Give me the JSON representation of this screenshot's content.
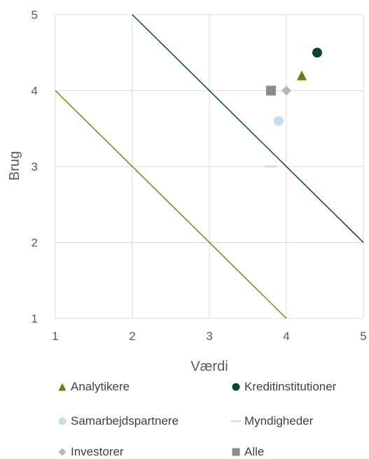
{
  "chart_data": {
    "type": "scatter",
    "title": "",
    "xlabel": "Værdi",
    "ylabel": "Brug",
    "xlim": [
      1,
      5
    ],
    "ylim": [
      1,
      5
    ],
    "xticks": [
      "1",
      "2",
      "3",
      "4",
      "5"
    ],
    "yticks": [
      "1",
      "2",
      "3",
      "4",
      "5"
    ],
    "grid": true,
    "legend_position": "bottom",
    "series": [
      {
        "name": "Analytikere",
        "marker": "triangle",
        "color": "#6b7d12",
        "points": [
          [
            4.2,
            4.2
          ]
        ]
      },
      {
        "name": "Kreditinstitutioner",
        "marker": "circle",
        "color": "#0b4632",
        "points": [
          [
            4.4,
            4.5
          ]
        ]
      },
      {
        "name": "Samarbejdspartnere",
        "marker": "circle",
        "color": "#c5dde9",
        "points": [
          [
            3.9,
            3.6
          ]
        ]
      },
      {
        "name": "Myndigheder",
        "marker": "dash",
        "color": "#dcdccb",
        "points": [
          [
            3.8,
            3.0
          ]
        ]
      },
      {
        "name": "Investorer",
        "marker": "diamond",
        "color": "#b3b8b3",
        "points": [
          [
            4.0,
            4.0
          ]
        ]
      },
      {
        "name": "Alle",
        "marker": "square",
        "color": "#8c8c8c",
        "points": [
          [
            3.8,
            4.0
          ]
        ]
      }
    ],
    "reference_lines": [
      {
        "color": "#0b4632",
        "points": [
          [
            2,
            5
          ],
          [
            5,
            2
          ]
        ]
      },
      {
        "color": "#6b8c0f",
        "points": [
          [
            1,
            4
          ],
          [
            4,
            1
          ]
        ]
      }
    ]
  }
}
